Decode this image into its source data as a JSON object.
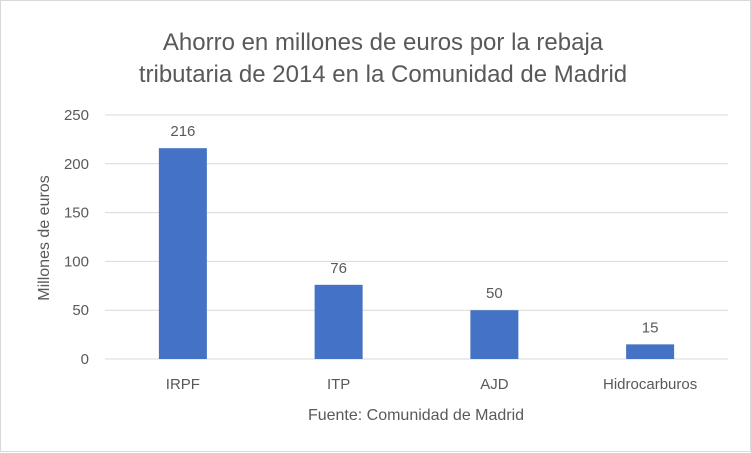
{
  "chart_data": {
    "type": "bar",
    "title_lines": [
      "Ahorro en millones de euros por la rebaja",
      "tributaria de 2014 en la Comunidad de Madrid"
    ],
    "xlabel": "Fuente: Comunidad de Madrid",
    "ylabel": "Millones de euros",
    "categories": [
      "IRPF",
      "ITP",
      "AJD",
      "Hidrocarburos"
    ],
    "values": [
      216,
      76,
      50,
      15
    ],
    "data_labels": [
      "216",
      "76",
      "50",
      "15"
    ],
    "ylim": [
      0,
      250
    ],
    "yticks": [
      0,
      50,
      100,
      150,
      200,
      250
    ],
    "ytick_labels": [
      "0",
      "50",
      "100",
      "150",
      "200",
      "250"
    ],
    "grid": true,
    "legend": "none",
    "colors": {
      "bar": "#4472C4",
      "grid": "#d9d9d9",
      "text": "#595959"
    }
  }
}
